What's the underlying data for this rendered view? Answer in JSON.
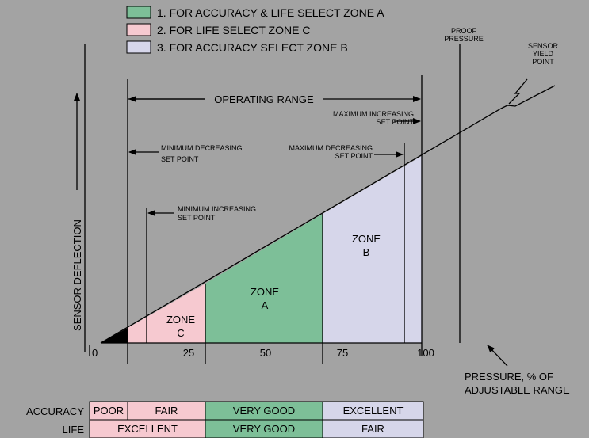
{
  "legend": [
    {
      "text": "1. FOR ACCURACY & LIFE SELECT ZONE A",
      "color": "#7dbf98"
    },
    {
      "text": "2. FOR LIFE SELECT ZONE C",
      "color": "#f6c9d0"
    },
    {
      "text": "3. FOR ACCURACY SELECT ZONE B",
      "color": "#d6d6ea"
    }
  ],
  "annotations": {
    "proof_pressure": [
      "PROOF",
      "PRESSURE"
    ],
    "sensor_yield_point": [
      "SENSOR",
      "YIELD",
      "POINT"
    ],
    "operating_range": "OPERATING RANGE",
    "maximum_increasing": [
      "MAXIMUM INCREASING",
      "SET POINT"
    ],
    "maximum_decreasing": [
      "MAXIMUM DECREASING",
      "SET POINT"
    ],
    "minimum_decreasing": [
      "MINIMUM DECREASING",
      "SET POINT"
    ],
    "minimum_increasing": [
      "MINIMUM INCREASING",
      "SET POINT"
    ]
  },
  "zones": [
    {
      "lines": [
        "ZONE",
        "C"
      ]
    },
    {
      "lines": [
        "ZONE",
        "A"
      ]
    },
    {
      "lines": [
        "ZONE",
        "B"
      ]
    }
  ],
  "y_axis_label": "SENSOR  DEFLECTION",
  "x_axis_label": [
    "PRESSURE, % OF",
    "ADJUSTABLE RANGE"
  ],
  "x_ticks": [
    "0",
    "25",
    "50",
    "75",
    "100"
  ],
  "table": {
    "rows": [
      {
        "label": "ACCURACY",
        "cells": [
          "POOR",
          "FAIR",
          "VERY GOOD",
          "EXCELLENT"
        ]
      },
      {
        "label": "LIFE",
        "cells": [
          "EXCELLENT",
          "VERY GOOD",
          "FAIR"
        ]
      }
    ]
  }
}
